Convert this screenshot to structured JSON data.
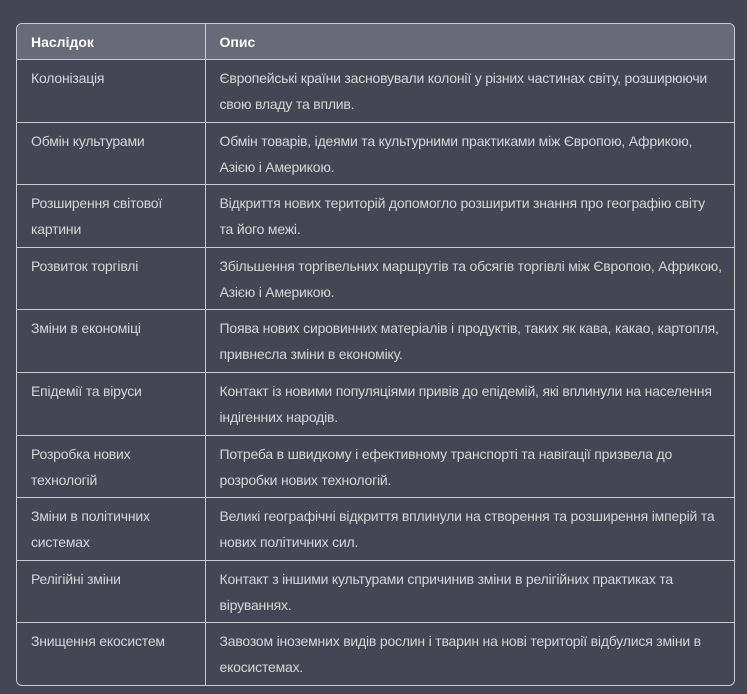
{
  "table": {
    "headers": [
      "Наслідок",
      "Опис"
    ],
    "rows": [
      [
        "Колонізація",
        "Європейські країни засновували колонії у різних частинах світу, розширюючи свою владу та вплив."
      ],
      [
        "Обмін культурами",
        "Обмін товарів, ідеями та культурними практиками між Європою, Африкою, Азією і Америкою."
      ],
      [
        "Розширення світової картини",
        "Відкриття нових територій допомогло розширити знання про географію світу та його межі."
      ],
      [
        "Розвиток торгівлі",
        "Збільшення торгівельних маршрутів та обсягів торгівлі між Європою, Африкою, Азією і Америкою."
      ],
      [
        "Зміни в економіці",
        "Поява нових сировинних матеріалів і продуктів, таких як кава, какао, картопля, привнесла зміни в економіку."
      ],
      [
        "Епідемії та віруси",
        "Контакт із новими популяціями привів до епідемій, які вплинули на населення індігенних народів."
      ],
      [
        "Розробка нових технологій",
        "Потреба в швидкому і ефективному транспорті та навігації призвела до розробки нових технологій."
      ],
      [
        "Зміни в політичних системах",
        "Великі географічні відкриття вплинули на створення та розширення імперій та нових політичних сил."
      ],
      [
        "Релігійні зміни",
        "Контакт з іншими культурами спричинив зміни в релігійних практиках та віруваннях."
      ],
      [
        "Знищення екосистем",
        "Завозом іноземних видів рослин і тварин на нові території відбулися зміни в екосистемах."
      ]
    ]
  },
  "colors": {
    "background": "#444654",
    "header": "#686a77",
    "border": "#c9cbd3",
    "text": "#d4d6dc"
  }
}
